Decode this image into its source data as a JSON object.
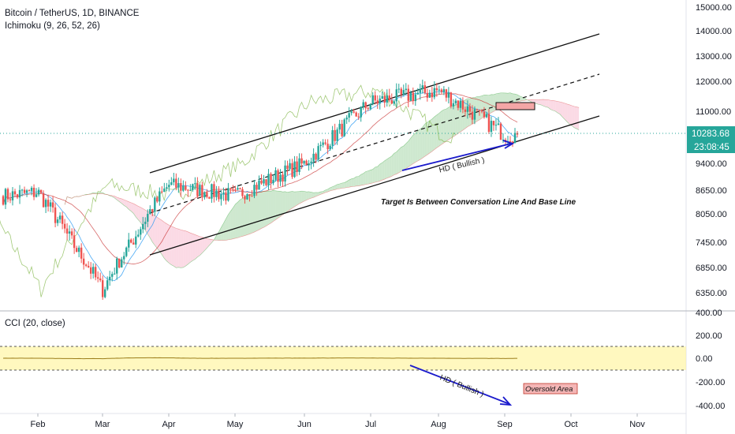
{
  "header": {
    "symbol_title": "Bitcoin / TetherUS, 1D, BINANCE",
    "indicator": "Ichimoku (9, 26, 52, 26)"
  },
  "colors": {
    "up": "#26a69a",
    "down": "#ef5350",
    "kumo_bull": "#a5d6a7",
    "kumo_bear": "#f8bbd0",
    "cci_line": "#9b7d1a",
    "cci_band": "#fff59d",
    "annotation_arrow": "#1a1acc",
    "price_tag": "#26a69a"
  },
  "chart_data": [
    {
      "type": "candlestick",
      "title": "Bitcoin / TetherUS, 1D, BINANCE",
      "y_axis_ticks": [
        "15000.00",
        "14000.00",
        "13000.00",
        "12000.00",
        "11000.00",
        "9400.00",
        "8650.00",
        "8050.00",
        "7450.00",
        "6850.00",
        "6350.00"
      ],
      "last_price": "10283.68",
      "countdown": "23:08:45",
      "x_axis_ticks": [
        "Feb",
        "Mar",
        "Apr",
        "May",
        "Jun",
        "Jul",
        "Aug",
        "Sep",
        "Oct",
        "Nov"
      ],
      "approx_monthly_closes": [
        {
          "month": "Jan",
          "close": 8500
        },
        {
          "month": "Feb",
          "close": 8600
        },
        {
          "month": "Mar",
          "close": 6400
        },
        {
          "month": "Apr",
          "close": 8800
        },
        {
          "month": "May",
          "close": 8500
        },
        {
          "month": "Jun",
          "close": 9400
        },
        {
          "month": "Jul",
          "close": 11300
        },
        {
          "month": "Aug",
          "close": 11700
        },
        {
          "month": "Sep",
          "close": 10280
        }
      ],
      "annotations": [
        "HD ( Bullish )",
        "Target Is Between Conversation Line And Base Line"
      ]
    },
    {
      "type": "line",
      "title": "CCI (20, close)",
      "y_axis_ticks": [
        "400.00",
        "200.00",
        "0.00",
        "-200.00",
        "-400.00"
      ],
      "band": [
        -100,
        100
      ],
      "annotations": [
        "HD ( Bullish )",
        "Oversold Area"
      ]
    }
  ]
}
